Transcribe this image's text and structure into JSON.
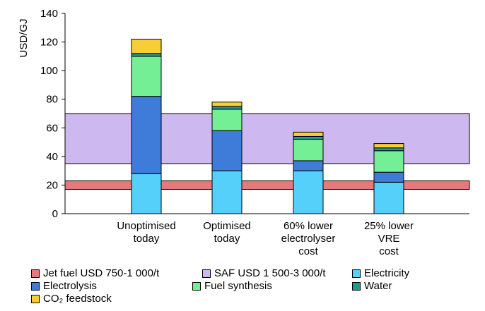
{
  "chart_data": {
    "type": "bar",
    "stacked": true,
    "ylabel": "USD/GJ",
    "ylim": [
      0,
      140
    ],
    "yticks": [
      0,
      20,
      40,
      60,
      80,
      100,
      120,
      140
    ],
    "grid": false,
    "legend_position": "bottom",
    "categories": [
      [
        "Unoptimised",
        "today"
      ],
      [
        "Optimised",
        "today"
      ],
      [
        "60% lower",
        "electrolyser",
        "cost"
      ],
      [
        "25% lower",
        "VRE",
        "cost"
      ]
    ],
    "bands": [
      {
        "name": "Jet fuel USD 750-1 000/t",
        "low": 17,
        "high": 23,
        "color": "#e8797a"
      },
      {
        "name": "SAF USD 1 500-3 000/t",
        "low": 35,
        "high": 70,
        "color": "#cdb9f0"
      }
    ],
    "series": [
      {
        "name": "Electricity",
        "color": "#55d0fb",
        "values": [
          28,
          30,
          30,
          22
        ]
      },
      {
        "name": "Electrolysis",
        "color": "#3f7bd8",
        "values": [
          54,
          28,
          7,
          7
        ]
      },
      {
        "name": "Fuel synthesis",
        "color": "#74ef95",
        "values": [
          28,
          15,
          15,
          15
        ]
      },
      {
        "name": "Water",
        "color": "#1d9a8e",
        "values": [
          2,
          2,
          2,
          2
        ]
      },
      {
        "name": "CO₂ feedstock",
        "color": "#f9cd35",
        "values": [
          10,
          3,
          3,
          3
        ]
      }
    ]
  },
  "legend": [
    {
      "label": "Jet fuel USD 750-1 000/t",
      "color": "#e8797a"
    },
    {
      "label": "SAF USD 1 500-3 000/t",
      "color": "#cdb9f0"
    },
    {
      "label": "Electricity",
      "color": "#55d0fb"
    },
    {
      "label": "Electrolysis",
      "color": "#3f7bd8"
    },
    {
      "label": "Fuel synthesis",
      "color": "#74ef95"
    },
    {
      "label": "Water",
      "color": "#1d9a8e"
    },
    {
      "label": "CO₂ feedstock",
      "color": "#f9cd35"
    }
  ]
}
